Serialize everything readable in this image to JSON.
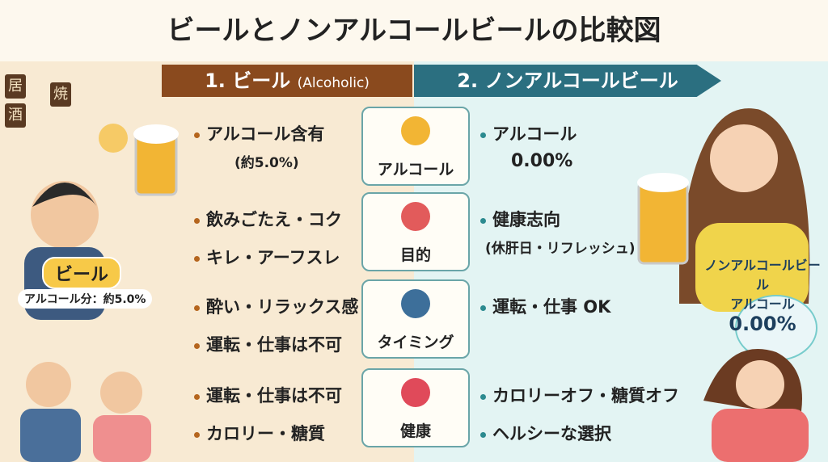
{
  "title": "ビールとノンアルコールビールの比較図",
  "left": {
    "heading": "1. ビール",
    "heading_sub": "(Alcoholic)",
    "signs": [
      "居",
      "酒",
      "焼"
    ],
    "badge": "ビール",
    "badge_note": "アルコール分：約5.0%"
  },
  "right": {
    "heading": "2. ノンアルコールビール",
    "badge": [
      "ノンアルコールビール",
      "アルコール",
      "0.00%"
    ]
  },
  "rows": [
    {
      "label": "アルコール",
      "left": [
        "アルコール含有"
      ],
      "left_note": "(約5.0%)",
      "right": [
        "アルコール"
      ],
      "right_note": "0.00%"
    },
    {
      "label": "目的",
      "left": [
        "飲みごたえ・コク",
        "キレ・アーフスレ"
      ],
      "right": [
        "健康志向"
      ],
      "right_note": "(休肝日・リフレッシュ)"
    },
    {
      "label": "タイミング",
      "left": [
        "酔い・リラックス感",
        "運転・仕事は不可"
      ],
      "right": [
        "運転・仕事 OK"
      ]
    },
    {
      "label": "健康",
      "left": [
        "運転・仕事は不可",
        "カロリー・糖質"
      ],
      "right": [
        "カロリーオフ・糖質オフ",
        "ヘルシーな選択"
      ]
    }
  ]
}
